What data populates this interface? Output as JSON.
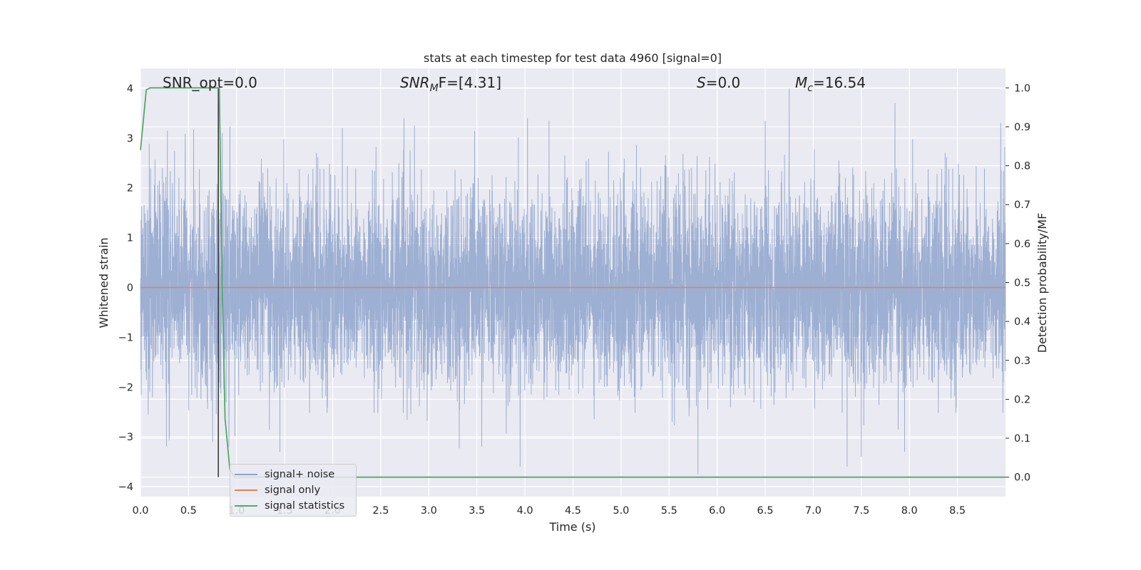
{
  "chart_data": {
    "type": "line",
    "title": "stats at each timestep for test data 4960 [signal=0]",
    "xlabel": "Time (s)",
    "ylabel": "Whitened strain",
    "y2label": "Detection probability/MF",
    "xlim": [
      0,
      9.0
    ],
    "ylim": [
      -4.2,
      4.4
    ],
    "y2lim": [
      -0.05,
      1.05
    ],
    "x_ticks": [
      0.0,
      0.5,
      1.0,
      1.5,
      2.0,
      2.5,
      3.0,
      3.5,
      4.0,
      4.5,
      5.0,
      5.5,
      6.0,
      6.5,
      7.0,
      7.5,
      8.0,
      8.5
    ],
    "x_tick_labels": [
      "0.0",
      "0.5",
      "1.0",
      "1.5",
      "2.0",
      "2.5",
      "3.0",
      "3.5",
      "4.0",
      "4.5",
      "5.0",
      "5.5",
      "6.0",
      "6.5",
      "7.0",
      "7.5",
      "8.0",
      "8.5"
    ],
    "y_ticks": [
      4,
      3,
      2,
      1,
      0,
      -1,
      -2,
      -3,
      -4
    ],
    "y_tick_labels": [
      "4",
      "3",
      "2",
      "1",
      "0",
      "−1",
      "−2",
      "−3",
      "−4"
    ],
    "y2_ticks": [
      1.0,
      0.9,
      0.8,
      0.7,
      0.6,
      0.5,
      0.4,
      0.3,
      0.2,
      0.1,
      0.0
    ],
    "y2_tick_labels": [
      "1.0",
      "0.9",
      "0.8",
      "0.7",
      "0.6",
      "0.5",
      "0.4",
      "0.3",
      "0.2",
      "0.1",
      "0.0"
    ],
    "grid": true,
    "legend_placement": "lower-left",
    "annotations": {
      "snr_opt": "SNR_opt=0.0",
      "snr_mf_sym": "SNR",
      "snr_mf_sub": "M",
      "snr_mf_rest": "F=[4.31]",
      "s_sym": "S",
      "s_rest": "=0.0",
      "mc_sym": "M",
      "mc_sub": "c",
      "mc_rest": "=16.54"
    },
    "series": [
      {
        "name": "signal+ noise",
        "color": "#8fa4cc",
        "note_noise": "whitened noise, roughly |y| <= 4, plotted densely across 0-9 s",
        "notable_peaks": [
          [
            0.28,
            3.15
          ],
          [
            0.85,
            3.1
          ],
          [
            2.1,
            3.2
          ],
          [
            2.85,
            3.25
          ],
          [
            4.25,
            3.35
          ],
          [
            6.5,
            3.35
          ],
          [
            6.75,
            4.0
          ],
          [
            7.85,
            3.7
          ],
          [
            8.95,
            3.3
          ]
        ],
        "notable_troughs": [
          [
            0.75,
            -3.1
          ],
          [
            0.92,
            -3.2
          ],
          [
            1.45,
            -3.3
          ],
          [
            3.55,
            -3.2
          ],
          [
            3.95,
            -3.6
          ],
          [
            5.8,
            -3.75
          ],
          [
            7.5,
            -3.4
          ],
          [
            7.95,
            -3.3
          ]
        ]
      },
      {
        "name": "signal only",
        "color": "#dd8452",
        "x": [
          0.0,
          9.0
        ],
        "y": [
          0.0,
          0.0
        ]
      },
      {
        "name": "signal statistics",
        "color": "#55a868",
        "axis": "right",
        "x": [
          0.0,
          0.06,
          0.1,
          0.2,
          0.3,
          0.4,
          0.5,
          0.6,
          0.7,
          0.75,
          0.8,
          0.82,
          0.85,
          0.88,
          0.93,
          0.98,
          1.05,
          1.5,
          2.0,
          3.0,
          4.0,
          5.0,
          6.0,
          7.0,
          8.0,
          9.0
        ],
        "y": [
          0.84,
          0.995,
          1.0,
          1.0,
          1.0,
          1.0,
          1.0,
          1.0,
          1.0,
          1.0,
          1.0,
          1.0,
          0.5,
          0.15,
          0.02,
          0.0,
          0.0,
          0.0,
          0.0,
          0.0,
          0.0,
          0.0,
          0.0,
          0.0,
          0.0,
          0.0
        ]
      }
    ],
    "marker_line": {
      "x": 0.81,
      "color": "#333333"
    }
  }
}
